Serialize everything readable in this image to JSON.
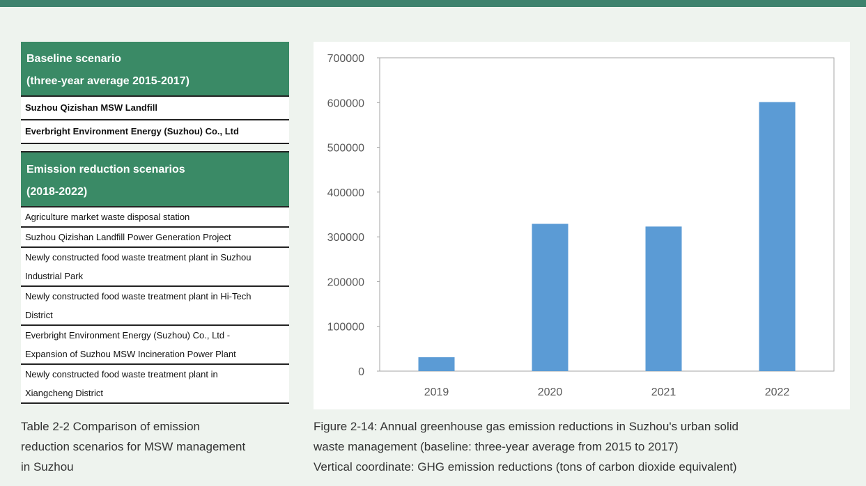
{
  "table": {
    "sections": [
      {
        "heading": [
          "Baseline scenario",
          "(three-year average 2015-2017)"
        ],
        "rows": [
          [
            "Suzhou Qizishan MSW Landfill"
          ],
          [
            "Everbright Environment Energy (Suzhou) Co., Ltd"
          ]
        ]
      },
      {
        "heading": [
          "Emission reduction scenarios",
          "(2018-2022)"
        ],
        "rows": [
          [
            "Agriculture market waste disposal station"
          ],
          [
            "Suzhou Qizishan Landfill Power Generation Project"
          ],
          [
            "Newly constructed food waste treatment plant in Suzhou",
            "Industrial Park"
          ],
          [
            "Newly constructed food waste treatment plant in Hi-Tech",
            "District"
          ],
          [
            "Everbright Environment Energy (Suzhou) Co., Ltd -",
            "Expansion of Suzhou MSW Incineration Power Plant"
          ],
          [
            "Newly constructed food waste treatment plant in",
            "Xiangcheng District"
          ]
        ]
      }
    ],
    "caption": [
      "Table 2-2 Comparison of emission",
      "reduction scenarios for MSW management",
      "in Suzhou"
    ]
  },
  "chart_data": {
    "type": "bar",
    "categories": [
      "2019",
      "2020",
      "2021",
      "2022"
    ],
    "values": [
      31000,
      329000,
      323000,
      601000
    ],
    "color": "#5b9bd5",
    "ylim": [
      0,
      700000
    ],
    "yticks": [
      0,
      100000,
      200000,
      300000,
      400000,
      500000,
      600000,
      700000
    ],
    "caption": [
      "Figure 2-14: Annual greenhouse gas emission reductions in Suzhou's urban solid",
      "waste management (baseline: three-year average from 2015 to 2017)",
      "Vertical coordinate: GHG emission reductions (tons of carbon dioxide equivalent)"
    ]
  }
}
